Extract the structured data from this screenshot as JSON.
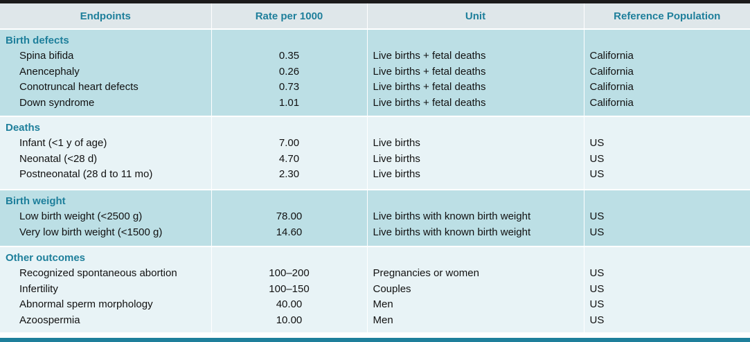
{
  "headers": [
    "Endpoints",
    "Rate per 1000",
    "Unit",
    "Reference Population"
  ],
  "groups": [
    {
      "title": "Birth defects",
      "rows": [
        {
          "endpoint": "Spina bifida",
          "rate": "0.35",
          "unit": "Live births + fetal deaths",
          "ref": "California"
        },
        {
          "endpoint": "Anencephaly",
          "rate": "0.26",
          "unit": "Live births + fetal deaths",
          "ref": "California"
        },
        {
          "endpoint": "Conotruncal heart defects",
          "rate": "0.73",
          "unit": "Live births + fetal deaths",
          "ref": "California"
        },
        {
          "endpoint": "Down syndrome",
          "rate": "1.01",
          "unit": "Live births + fetal deaths",
          "ref": "California"
        }
      ]
    },
    {
      "title": "Deaths",
      "rows": [
        {
          "endpoint": "Infant (<1 y of age)",
          "rate": "7.00",
          "unit": "Live births",
          "ref": "US"
        },
        {
          "endpoint": "Neonatal (<28 d)",
          "rate": "4.70",
          "unit": "Live births",
          "ref": "US"
        },
        {
          "endpoint": "Postneonatal (28 d to 11 mo)",
          "rate": "2.30",
          "unit": "Live births",
          "ref": "US"
        }
      ]
    },
    {
      "title": "Birth weight",
      "rows": [
        {
          "endpoint": "Low birth weight (<2500 g)",
          "rate": "78.00",
          "unit": "Live births with known birth weight",
          "ref": "US"
        },
        {
          "endpoint": "Very low birth weight (<1500 g)",
          "rate": "14.60",
          "unit": "Live births with known birth weight",
          "ref": "US"
        }
      ]
    },
    {
      "title": "Other outcomes",
      "rows": [
        {
          "endpoint": "Recognized spontaneous abortion",
          "rate": "100–200",
          "unit": "Pregnancies or women",
          "ref": "US"
        },
        {
          "endpoint": "Infertility",
          "rate": "100–150",
          "unit": "Couples",
          "ref": "US"
        },
        {
          "endpoint": "Abnormal sperm morphology",
          "rate": "40.00",
          "unit": "Men",
          "ref": "US"
        },
        {
          "endpoint": "Azoospermia",
          "rate": "10.00",
          "unit": "Men",
          "ref": "US"
        }
      ]
    }
  ],
  "colors": {
    "header_text": "#1e7f9b",
    "band_dark": "#bcdfe5",
    "band_light": "#e8f3f6"
  }
}
